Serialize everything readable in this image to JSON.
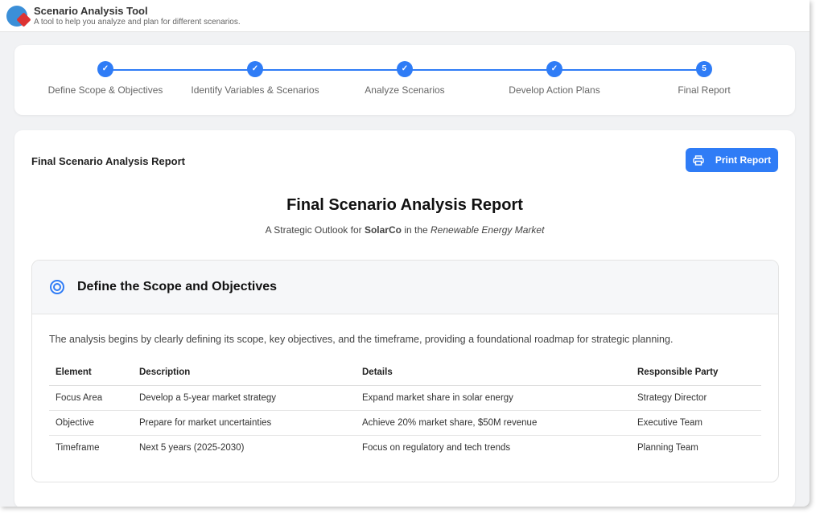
{
  "app": {
    "title": "Scenario Analysis Tool",
    "subtitle": "A tool to help you analyze and plan for different scenarios."
  },
  "stepper": {
    "steps": [
      {
        "label": "Define Scope & Objectives",
        "state": "complete",
        "marker": "✓"
      },
      {
        "label": "Identify Variables & Scenarios",
        "state": "complete",
        "marker": "✓"
      },
      {
        "label": "Analyze Scenarios",
        "state": "complete",
        "marker": "✓"
      },
      {
        "label": "Develop Action Plans",
        "state": "complete",
        "marker": "✓"
      },
      {
        "label": "Final Report",
        "state": "current",
        "marker": "5"
      }
    ]
  },
  "report": {
    "header": "Final Scenario Analysis Report",
    "print_label": "Print Report",
    "title": "Final Scenario Analysis Report",
    "subtitle": {
      "pre": "A Strategic Outlook for ",
      "company": "SolarCo",
      "mid": " in the ",
      "market": "Renewable Energy Market"
    }
  },
  "section": {
    "icon": "target-icon",
    "title": "Define the Scope and Objectives",
    "intro": "The analysis begins by clearly defining its scope, key objectives, and the timeframe, providing a foundational roadmap for strategic planning.",
    "columns": [
      "Element",
      "Description",
      "Details",
      "Responsible Party"
    ],
    "rows": [
      [
        "Focus Area",
        "Develop a 5-year market strategy",
        "Expand market share in solar energy",
        "Strategy Director"
      ],
      [
        "Objective",
        "Prepare for market uncertainties",
        "Achieve 20% market share, $50M revenue",
        "Executive Team"
      ],
      [
        "Timeframe",
        "Next 5 years (2025-2030)",
        "Focus on regulatory and tech trends",
        "Planning Team"
      ]
    ]
  },
  "colors": {
    "accent": "#2f7cf6"
  }
}
